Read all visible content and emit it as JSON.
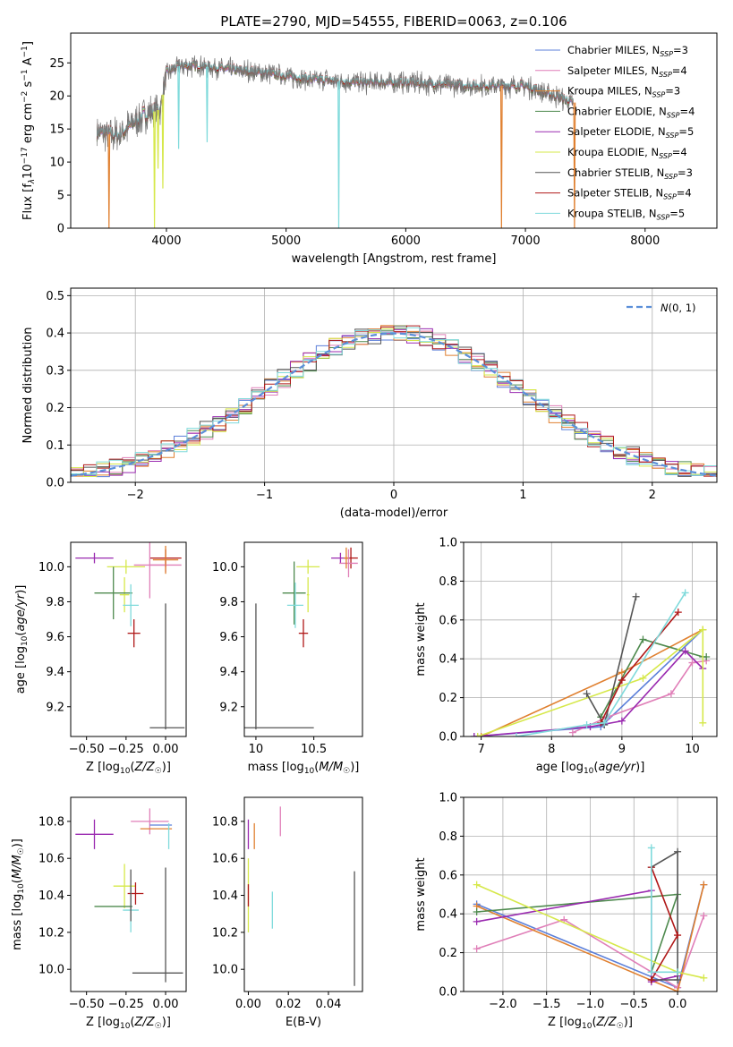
{
  "figure": {
    "title": "PLATE=2790, MJD=54555, FIBERID=0063, z=0.106"
  },
  "chart_data": [
    {
      "id": "spectrum",
      "type": "line",
      "xlabel": "wavelength [Angstrom, rest frame]",
      "ylabel": "Flux [f_λ 10^-17 erg cm^-2 s^-1 A^-1]",
      "xlim": [
        3200,
        8600
      ],
      "ylim": [
        0,
        29.5
      ],
      "xticks": [
        4000,
        5000,
        6000,
        7000,
        8000
      ],
      "yticks": [
        0,
        5,
        10,
        15,
        20,
        25
      ],
      "grid": false,
      "legend_position": "top-right",
      "legend": [
        {
          "label": "Chabrier MILES, N_SSP=3",
          "color": "#5b7fd9"
        },
        {
          "label": "Salpeter MILES, N_SSP=4",
          "color": "#e07fb8"
        },
        {
          "label": "Kroupa MILES, N_SSP=3",
          "color": "#e08030"
        },
        {
          "label": "Chabrier ELODIE, N_SSP=4",
          "color": "#4e8a4e"
        },
        {
          "label": "Salpeter ELODIE, N_SSP=5",
          "color": "#9a2ab0"
        },
        {
          "label": "Kroupa ELODIE, N_SSP=4",
          "color": "#d6e84a"
        },
        {
          "label": "Chabrier STELIB, N_SSP=3",
          "color": "#555555"
        },
        {
          "label": "Salpeter STELIB, N_SSP=4",
          "color": "#b01818"
        },
        {
          "label": "Kroupa STELIB, N_SSP=5",
          "color": "#7fdadb"
        }
      ],
      "continuum": {
        "x": [
          3420,
          3600,
          3800,
          3950,
          4000,
          4100,
          4300,
          4500,
          4800,
          5200,
          5600,
          6000,
          6500,
          7000,
          7400
        ],
        "y": [
          14.5,
          14,
          17,
          18,
          23.5,
          24.5,
          24.5,
          24,
          23.5,
          22.5,
          22,
          22,
          21.5,
          21.5,
          19
        ]
      },
      "absorption_features": [
        {
          "x": 3520,
          "y": 0
        },
        {
          "x": 3900,
          "y": 0
        },
        {
          "x": 3930,
          "y": 9
        },
        {
          "x": 3970,
          "y": 6
        },
        {
          "x": 4102,
          "y": 12
        },
        {
          "x": 4340,
          "y": 13
        },
        {
          "x": 5440,
          "y": 0
        },
        {
          "x": 6800,
          "y": 0
        },
        {
          "x": 7410,
          "y": 0
        }
      ]
    },
    {
      "id": "residuals",
      "type": "line",
      "xlabel": "(data-model)/error",
      "ylabel": "Normed distribution",
      "xlim": [
        -2.5,
        2.5
      ],
      "ylim": [
        0,
        0.52
      ],
      "xticks": [
        -2,
        -1,
        0,
        1,
        2
      ],
      "yticks": [
        0.0,
        0.1,
        0.2,
        0.3,
        0.4,
        0.5
      ],
      "grid": true,
      "legend_position": "top-right",
      "legend": [
        {
          "label": "N(0, 1)",
          "color": "#5b8fd9",
          "style": "dashed"
        }
      ],
      "gaussian": {
        "mean": 0,
        "sigma": 1
      }
    },
    {
      "id": "Z-age",
      "type": "scatter",
      "xlabel": "Z [log10(Z/Z☉)]",
      "ylabel": "age [log10(age/yr)]",
      "xlim": [
        -0.6,
        0.13
      ],
      "ylim": [
        9.03,
        10.14
      ],
      "xticks": [
        -0.5,
        -0.25,
        0.0
      ],
      "xtick_labels": [
        "−0.50",
        "−0.25",
        "0.00"
      ],
      "yticks": [
        9.2,
        9.4,
        9.6,
        9.8,
        10.0
      ],
      "points": [
        {
          "x": 0.0,
          "y": 10.05,
          "xerr": 0.1,
          "yerr": 0.05,
          "color": "#b01818"
        },
        {
          "x": -0.2,
          "y": 9.62,
          "xerr": 0.04,
          "yerr": 0.08,
          "color": "#b01818"
        },
        {
          "x": -0.45,
          "y": 10.05,
          "xerr": 0.12,
          "yerr": 0.03,
          "color": "#9a2ab0"
        },
        {
          "x": 0.0,
          "y": 10.01,
          "xerr": 0.1,
          "yerr": 0.04,
          "color": "#e07fb8"
        },
        {
          "x": -0.1,
          "y": 10.01,
          "xerr": 0.1,
          "yerr": 0.19,
          "color": "#e07fb8"
        },
        {
          "x": 0.0,
          "y": 10.04,
          "xerr": 0.08,
          "yerr": 0.08,
          "color": "#e08030"
        },
        {
          "x": -0.25,
          "y": 10.0,
          "xerr": 0.12,
          "yerr": 0.04,
          "color": "#d6e84a"
        },
        {
          "x": -0.26,
          "y": 9.84,
          "xerr": 0.03,
          "yerr": 0.1,
          "color": "#d6e84a"
        },
        {
          "x": -0.33,
          "y": 9.85,
          "xerr": 0.12,
          "yerr": 0.15,
          "color": "#4e8a4e"
        },
        {
          "x": -0.22,
          "y": 9.78,
          "xerr": 0.05,
          "yerr": 0.12,
          "color": "#7fdadb"
        },
        {
          "x": 0.01,
          "y": 9.08,
          "xerr": 0.11,
          "yerr": 0.0,
          "color": "#555555"
        },
        {
          "x": 0.0,
          "y": 9.43,
          "xerr": 0.0,
          "yerr": 0.36,
          "color": "#555555"
        }
      ]
    },
    {
      "id": "mass-age",
      "type": "scatter",
      "xlabel": "mass [log10(M/M☉)]",
      "ylabel": "",
      "xlim": [
        9.9,
        10.92
      ],
      "ylim": [
        9.03,
        10.14
      ],
      "xticks": [
        10.0,
        10.5
      ],
      "yticks": [
        9.2,
        9.4,
        9.6,
        9.8,
        10.0
      ],
      "points": [
        {
          "x": 10.82,
          "y": 10.05,
          "xerr": 0.06,
          "yerr": 0.06,
          "color": "#b01818"
        },
        {
          "x": 10.41,
          "y": 9.62,
          "xerr": 0.04,
          "yerr": 0.08,
          "color": "#b01818"
        },
        {
          "x": 10.73,
          "y": 10.05,
          "xerr": 0.08,
          "yerr": 0.03,
          "color": "#9a2ab0"
        },
        {
          "x": 10.8,
          "y": 10.02,
          "xerr": 0.08,
          "yerr": 0.08,
          "color": "#e07fb8"
        },
        {
          "x": 10.78,
          "y": 10.05,
          "xerr": 0.02,
          "yerr": 0.06,
          "color": "#e08030"
        },
        {
          "x": 10.45,
          "y": 10.0,
          "xerr": 0.1,
          "yerr": 0.04,
          "color": "#d6e84a"
        },
        {
          "x": 10.45,
          "y": 9.84,
          "xerr": 0.01,
          "yerr": 0.1,
          "color": "#d6e84a"
        },
        {
          "x": 10.33,
          "y": 9.85,
          "xerr": 0.1,
          "yerr": 0.18,
          "color": "#4e8a4e"
        },
        {
          "x": 10.34,
          "y": 9.78,
          "xerr": 0.07,
          "yerr": 0.13,
          "color": "#7fdadb"
        },
        {
          "x": 10.2,
          "y": 9.08,
          "xerr": 0.3,
          "yerr": 0.0,
          "color": "#555555"
        },
        {
          "x": 10.0,
          "y": 9.43,
          "xerr": 0.0,
          "yerr": 0.36,
          "color": "#555555"
        }
      ]
    },
    {
      "id": "weight-age",
      "type": "line",
      "xlabel": "age [log10(age/yr)]",
      "ylabel": "mass weight",
      "xlim": [
        6.75,
        10.35
      ],
      "ylim": [
        0,
        1.0
      ],
      "xticks": [
        7,
        8,
        9,
        10
      ],
      "yticks": [
        0.0,
        0.2,
        0.4,
        0.6,
        0.8,
        1.0
      ],
      "grid": true,
      "series": [
        {
          "color": "#5b7fd9",
          "x": [
            6.9,
            8.7,
            10.15
          ],
          "y": [
            0.0,
            0.05,
            0.55
          ]
        },
        {
          "color": "#e07fb8",
          "x": [
            8.3,
            8.8,
            9.7,
            10.0,
            10.2
          ],
          "y": [
            0.02,
            0.1,
            0.22,
            0.38,
            0.39
          ]
        },
        {
          "color": "#e08030",
          "x": [
            7.0,
            9.0,
            10.15
          ],
          "y": [
            0.0,
            0.33,
            0.55
          ]
        },
        {
          "color": "#4e8a4e",
          "x": [
            8.7,
            9.3,
            10.15,
            10.2
          ],
          "y": [
            0.1,
            0.5,
            0.41,
            0.41
          ]
        },
        {
          "color": "#9a2ab0",
          "x": [
            6.9,
            8.55,
            9.0,
            9.9,
            10.15
          ],
          "y": [
            0.0,
            0.05,
            0.08,
            0.44,
            0.35
          ]
        },
        {
          "color": "#d6e84a",
          "x": [
            6.95,
            9.3,
            10.15,
            10.15,
            10.15
          ],
          "y": [
            0.0,
            0.3,
            0.55,
            0.55,
            0.07
          ]
        },
        {
          "color": "#555555",
          "x": [
            8.5,
            8.75,
            9.2
          ],
          "y": [
            0.22,
            0.06,
            0.72
          ]
        },
        {
          "color": "#b01818",
          "x": [
            8.7,
            9.0,
            9.8
          ],
          "y": [
            0.07,
            0.29,
            0.64
          ]
        },
        {
          "color": "#7fdadb",
          "x": [
            7.5,
            8.5,
            8.75,
            9.9
          ],
          "y": [
            0.0,
            0.06,
            0.07,
            0.74
          ]
        }
      ]
    },
    {
      "id": "Z-mass",
      "type": "scatter",
      "xlabel": "Z [log10(Z/Z☉)]",
      "ylabel": "mass [log10(M/M☉)]",
      "xlim": [
        -0.6,
        0.13
      ],
      "ylim": [
        9.88,
        10.93
      ],
      "xticks": [
        -0.5,
        -0.25,
        0.0
      ],
      "xtick_labels": [
        "−0.50",
        "−0.25",
        "0.00"
      ],
      "yticks": [
        10.0,
        10.2,
        10.4,
        10.6,
        10.8
      ],
      "points": [
        {
          "x": -0.45,
          "y": 10.73,
          "xerr": 0.12,
          "yerr": 0.08,
          "color": "#9a2ab0"
        },
        {
          "x": -0.1,
          "y": 10.8,
          "xerr": 0.12,
          "yerr": 0.07,
          "color": "#e07fb8"
        },
        {
          "x": -0.06,
          "y": 10.76,
          "xerr": 0.1,
          "yerr": 0.0,
          "color": "#e08030"
        },
        {
          "x": -0.03,
          "y": 10.78,
          "xerr": 0.07,
          "yerr": 0.0,
          "color": "#5b7fd9"
        },
        {
          "x": 0.02,
          "y": 10.72,
          "xerr": 0.0,
          "yerr": 0.07,
          "color": "#7fdadb"
        },
        {
          "x": -0.26,
          "y": 10.45,
          "xerr": 0.07,
          "yerr": 0.12,
          "color": "#d6e84a"
        },
        {
          "x": -0.19,
          "y": 10.41,
          "xerr": 0.05,
          "yerr": 0.06,
          "color": "#b01818"
        },
        {
          "x": -0.33,
          "y": 10.34,
          "xerr": 0.12,
          "yerr": 0.0,
          "color": "#4e8a4e"
        },
        {
          "x": -0.22,
          "y": 10.32,
          "xerr": 0.05,
          "yerr": 0.12,
          "color": "#7fdadb"
        },
        {
          "x": -0.22,
          "y": 10.4,
          "xerr": 0.0,
          "yerr": 0.14,
          "color": "#555555"
        },
        {
          "x": 0.0,
          "y": 10.24,
          "xerr": 0.0,
          "yerr": 0.31,
          "color": "#555555"
        },
        {
          "x": -0.05,
          "y": 9.98,
          "xerr": 0.16,
          "yerr": 0.0,
          "color": "#555555"
        }
      ]
    },
    {
      "id": "EBV-mass",
      "type": "scatter",
      "xlabel": "E(B-V)",
      "ylabel": "",
      "xlim": [
        -0.002,
        0.057
      ],
      "ylim": [
        9.88,
        10.93
      ],
      "xticks": [
        0.0,
        0.02,
        0.04
      ],
      "xtick_labels": [
        "0.00",
        "0.02",
        "0.04"
      ],
      "yticks": [
        10.0,
        10.2,
        10.4,
        10.6,
        10.8
      ],
      "points": [
        {
          "x": 0.0,
          "y": 10.73,
          "xerr": 0.0,
          "yerr": 0.08,
          "color": "#9a2ab0"
        },
        {
          "x": 0.003,
          "y": 10.72,
          "xerr": 0.0,
          "yerr": 0.07,
          "color": "#e08030"
        },
        {
          "x": 0.0,
          "y": 10.4,
          "xerr": 0.0,
          "yerr": 0.2,
          "color": "#d6e84a"
        },
        {
          "x": 0.0,
          "y": 10.4,
          "xerr": 0.0,
          "yerr": 0.06,
          "color": "#b01818"
        },
        {
          "x": 0.016,
          "y": 10.8,
          "xerr": 0.0,
          "yerr": 0.08,
          "color": "#e07fb8"
        },
        {
          "x": 0.012,
          "y": 10.32,
          "xerr": 0.0,
          "yerr": 0.1,
          "color": "#7fdadb"
        },
        {
          "x": 0.053,
          "y": 10.22,
          "xerr": 0.0,
          "yerr": 0.31,
          "color": "#555555"
        }
      ]
    },
    {
      "id": "weight-Z",
      "type": "line",
      "xlabel": "Z [log10(Z/Z☉)]",
      "ylabel": "mass weight",
      "xlim": [
        -2.45,
        0.45
      ],
      "ylim": [
        0,
        1.0
      ],
      "xticks": [
        -2.0,
        -1.5,
        -1.0,
        -0.5,
        0.0
      ],
      "xtick_labels": [
        "−2.0",
        "−1.5",
        "−1.0",
        "−0.5",
        "0.0"
      ],
      "yticks": [
        0.0,
        0.2,
        0.4,
        0.6,
        0.8,
        1.0
      ],
      "grid": true,
      "series": [
        {
          "color": "#5b7fd9",
          "x": [
            -2.3,
            0.0,
            0.3
          ],
          "y": [
            0.45,
            0.02,
            0.55
          ]
        },
        {
          "color": "#e07fb8",
          "x": [
            -2.3,
            -1.3,
            0.0,
            0.3
          ],
          "y": [
            0.22,
            0.37,
            0.02,
            0.39
          ]
        },
        {
          "color": "#e08030",
          "x": [
            -2.3,
            0.0,
            0.3
          ],
          "y": [
            0.44,
            0.0,
            0.55
          ]
        },
        {
          "color": "#4e8a4e",
          "x": [
            -2.3,
            0.0,
            -0.3
          ],
          "y": [
            0.41,
            0.5,
            0.1
          ]
        },
        {
          "color": "#9a2ab0",
          "x": [
            -2.3,
            -0.3,
            -0.3,
            0.0
          ],
          "y": [
            0.36,
            0.52,
            0.05,
            0.08
          ]
        },
        {
          "color": "#d6e84a",
          "x": [
            -2.3,
            0.0,
            0.3
          ],
          "y": [
            0.55,
            0.1,
            0.07
          ]
        },
        {
          "color": "#555555",
          "x": [
            -0.3,
            0.0,
            0.0,
            -0.3
          ],
          "y": [
            0.64,
            0.72,
            0.06,
            0.06
          ]
        },
        {
          "color": "#b01818",
          "x": [
            -0.3,
            0.0,
            -0.3
          ],
          "y": [
            0.64,
            0.29,
            0.06
          ]
        },
        {
          "color": "#7fdadb",
          "x": [
            -0.3,
            -0.3,
            0.0
          ],
          "y": [
            0.74,
            0.1,
            0.1
          ]
        }
      ]
    }
  ]
}
